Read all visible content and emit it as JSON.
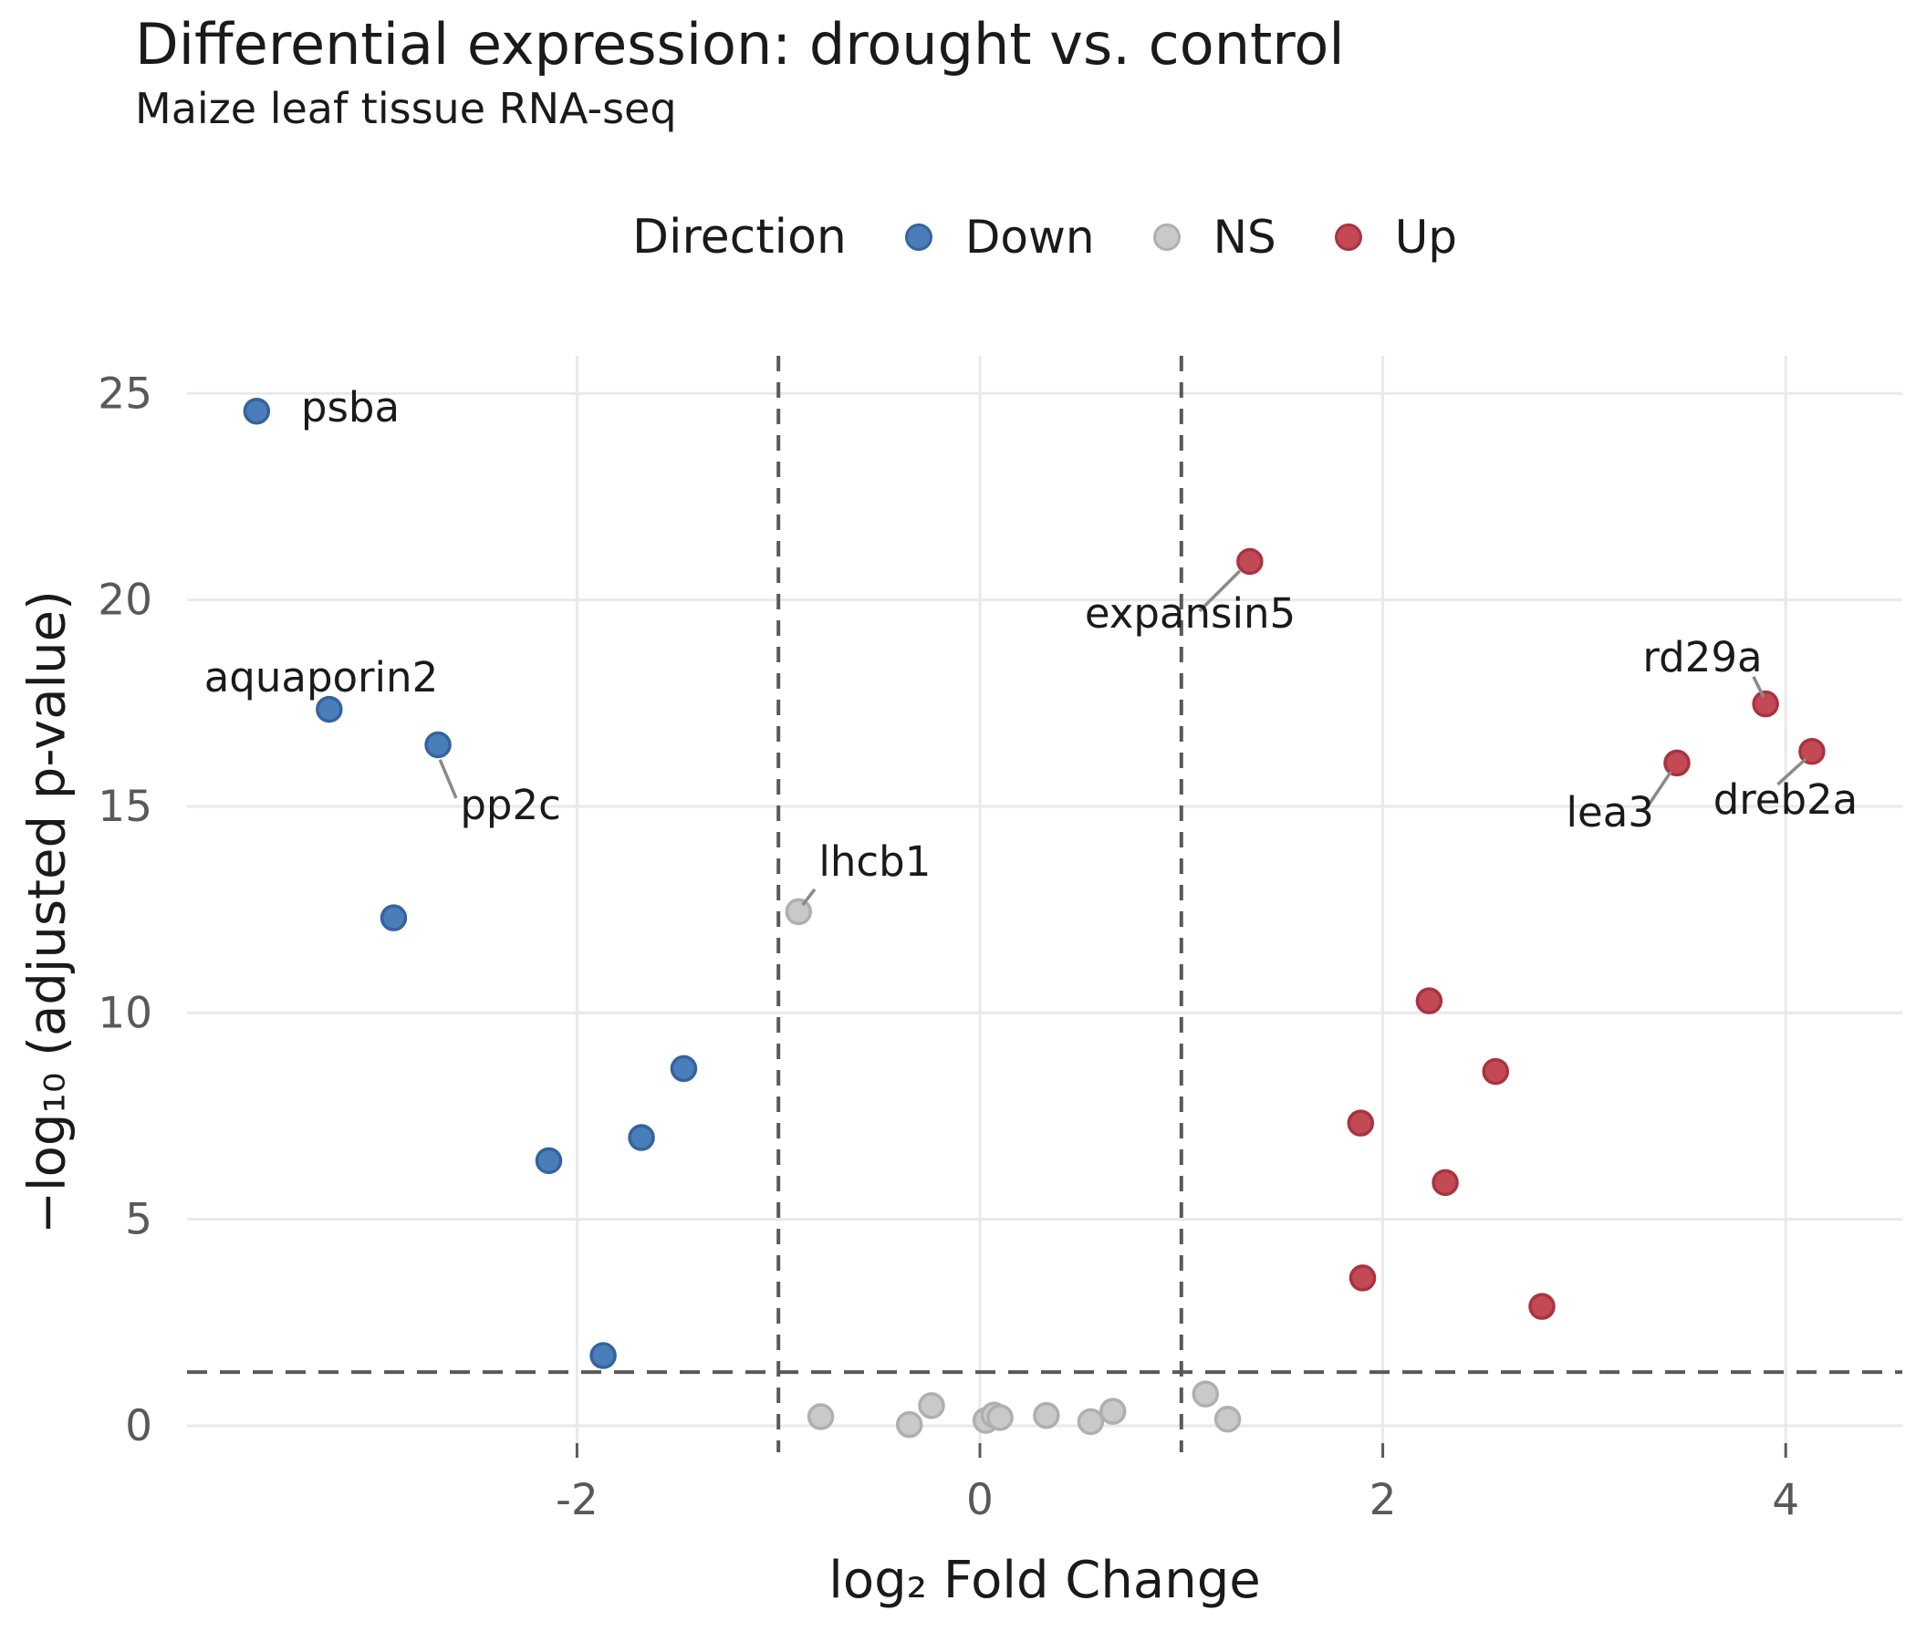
{
  "title": "Differential expression: drought vs. control",
  "subtitle": "Maize leaf tissue RNA-seq",
  "legend": {
    "title": "Direction",
    "items": [
      {
        "label": "Down",
        "fill": "#4A7EBB",
        "edge": "#35639E"
      },
      {
        "label": "NS",
        "fill": "#C9C9C9",
        "edge": "#AFAFAF"
      },
      {
        "label": "Up",
        "fill": "#C34A55",
        "edge": "#A93340"
      }
    ]
  },
  "chart_data": {
    "type": "scatter",
    "title": "Differential expression: drought vs. control",
    "subtitle": "Maize leaf tissue RNA-seq",
    "xlabel": "log₂ Fold Change",
    "ylabel": "−log₁₀ (adjusted p-value)",
    "xlim": [
      -3.94,
      4.58
    ],
    "ylim": [
      -0.42,
      25.9
    ],
    "x_ticks": [
      -2,
      0,
      2,
      4
    ],
    "y_ticks": [
      0,
      5,
      10,
      15,
      20,
      25
    ],
    "grid": true,
    "legend_position": "top",
    "thresholds": {
      "vlines": [
        -1,
        1
      ],
      "hline": 1.301,
      "style": "dashed",
      "color": "#595959"
    },
    "colors": {
      "gridline": "#E9E9E9",
      "tick_label": "#595959",
      "annotation": "#1a1a1a",
      "leader": "#8A8A8A"
    },
    "series": [
      {
        "name": "Down",
        "fill": "#4A7EBB",
        "edge": "#35639E",
        "points": [
          [
            -3.59,
            24.57
          ],
          [
            -3.23,
            17.35
          ],
          [
            -2.69,
            16.49
          ],
          [
            -2.91,
            12.3
          ],
          [
            -1.47,
            8.65
          ],
          [
            -1.68,
            6.98
          ],
          [
            -2.14,
            6.42
          ],
          [
            -1.87,
            1.7
          ]
        ]
      },
      {
        "name": "NS",
        "fill": "#C9C9C9",
        "edge": "#AFAFAF",
        "points": [
          [
            -0.9,
            12.45
          ],
          [
            -0.79,
            0.22
          ],
          [
            -0.35,
            0.03
          ],
          [
            -0.24,
            0.49
          ],
          [
            0.03,
            0.13
          ],
          [
            0.07,
            0.26
          ],
          [
            0.1,
            0.2
          ],
          [
            0.33,
            0.25
          ],
          [
            0.55,
            0.1
          ],
          [
            0.66,
            0.35
          ],
          [
            1.12,
            0.77
          ],
          [
            1.23,
            0.16
          ]
        ]
      },
      {
        "name": "Up",
        "fill": "#C34A55",
        "edge": "#A93340",
        "points": [
          [
            1.34,
            20.93
          ],
          [
            3.9,
            17.48
          ],
          [
            4.13,
            16.33
          ],
          [
            3.46,
            16.05
          ],
          [
            2.23,
            10.29
          ],
          [
            2.56,
            8.58
          ],
          [
            1.89,
            7.33
          ],
          [
            2.31,
            5.89
          ],
          [
            1.9,
            3.58
          ],
          [
            2.79,
            2.89
          ]
        ]
      }
    ],
    "annotations": [
      {
        "text": "psba",
        "x": -3.37,
        "y": 24.32,
        "anchor": "start"
      },
      {
        "text": "aquaporin2",
        "x": -3.27,
        "y": 17.78,
        "anchor": "middle"
      },
      {
        "text": "pp2c",
        "x": -2.58,
        "y": 14.69,
        "anchor": "start",
        "leader": [
          -2.68,
          16.13,
          -2.6,
          15.2
        ]
      },
      {
        "text": "lhcb1",
        "x": -0.8,
        "y": 13.32,
        "anchor": "start",
        "leader": [
          -0.82,
          12.99,
          -0.88,
          12.61
        ]
      },
      {
        "text": "expansin5",
        "x": 0.52,
        "y": 19.33,
        "anchor": "start",
        "leader": [
          1.09,
          19.73,
          1.29,
          20.7
        ]
      },
      {
        "text": "rd29a",
        "x": 3.29,
        "y": 18.27,
        "anchor": "start",
        "leader": [
          3.84,
          18.14,
          3.89,
          17.65
        ]
      },
      {
        "text": "lea3",
        "x": 2.91,
        "y": 14.51,
        "anchor": "start",
        "leader": [
          3.3,
          14.89,
          3.43,
          15.84
        ]
      },
      {
        "text": "dreb2a",
        "x": 3.64,
        "y": 14.82,
        "anchor": "start",
        "leader": [
          3.96,
          15.53,
          4.1,
          16.15
        ]
      }
    ]
  }
}
